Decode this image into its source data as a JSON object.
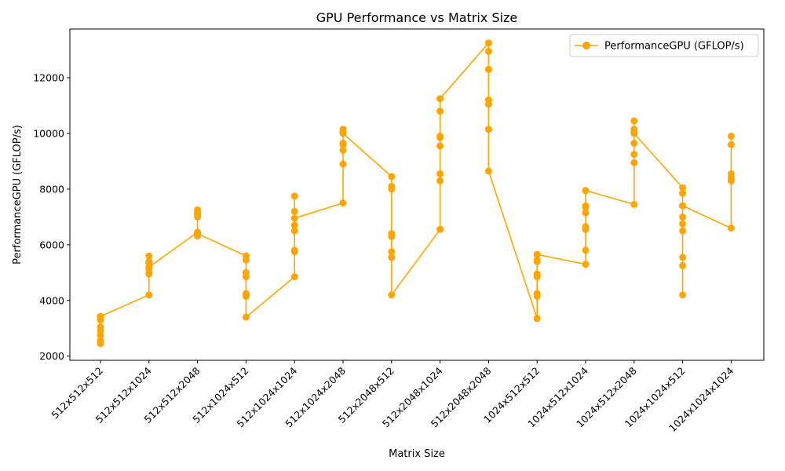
{
  "chart_data": {
    "type": "line",
    "title": "GPU Performance vs Matrix Size",
    "xlabel": "Matrix Size",
    "ylabel": "PerformanceGPU (GFLOP/s)",
    "ylim": [
      1850,
      13750
    ],
    "yticks": [
      2000,
      4000,
      6000,
      8000,
      10000,
      12000
    ],
    "ytick_labels": [
      "2000",
      "4000",
      "6000",
      "8000",
      "10000",
      "12000"
    ],
    "categories": [
      "512x512x512",
      "512x512x1024",
      "512x512x2048",
      "512x1024x512",
      "512x1024x1024",
      "512x1024x2048",
      "512x2048x512",
      "512x2048x1024",
      "512x2048x2048",
      "1024x512x512",
      "1024x512x1024",
      "1024x512x2048",
      "1024x1024x512",
      "1024x1024x1024"
    ],
    "legend": {
      "position": "top-right"
    },
    "color": "#ffa500",
    "series": [
      {
        "name": "PerformanceGPU (GFLOP/s)",
        "points": [
          {
            "x": "512x512x512",
            "y": 2450
          },
          {
            "x": "512x512x512",
            "y": 2550
          },
          {
            "x": "512x512x512",
            "y": 2750
          },
          {
            "x": "512x512x512",
            "y": 2900
          },
          {
            "x": "512x512x512",
            "y": 3050
          },
          {
            "x": "512x512x512",
            "y": 3300
          },
          {
            "x": "512x512x512",
            "y": 3400
          },
          {
            "x": "512x512x512",
            "y": 3430
          },
          {
            "x": "512x512x1024",
            "y": 4200
          },
          {
            "x": "512x512x1024",
            "y": 4950
          },
          {
            "x": "512x512x1024",
            "y": 5000
          },
          {
            "x": "512x512x1024",
            "y": 5150
          },
          {
            "x": "512x512x1024",
            "y": 5350
          },
          {
            "x": "512x512x1024",
            "y": 5400
          },
          {
            "x": "512x512x1024",
            "y": 5600
          },
          {
            "x": "512x512x1024",
            "y": 5200
          },
          {
            "x": "512x512x2048",
            "y": 6450
          },
          {
            "x": "512x512x2048",
            "y": 6320
          },
          {
            "x": "512x512x2048",
            "y": 6400
          },
          {
            "x": "512x512x2048",
            "y": 7000
          },
          {
            "x": "512x512x2048",
            "y": 7100
          },
          {
            "x": "512x512x2048",
            "y": 7150
          },
          {
            "x": "512x512x2048",
            "y": 7250
          },
          {
            "x": "512x512x2048",
            "y": 6400
          },
          {
            "x": "512x1024x512",
            "y": 5600
          },
          {
            "x": "512x1024x512",
            "y": 5450
          },
          {
            "x": "512x1024x512",
            "y": 5000
          },
          {
            "x": "512x1024x512",
            "y": 4850
          },
          {
            "x": "512x1024x512",
            "y": 4250
          },
          {
            "x": "512x1024x512",
            "y": 4150
          },
          {
            "x": "512x1024x512",
            "y": 4200
          },
          {
            "x": "512x1024x512",
            "y": 3400
          },
          {
            "x": "512x1024x1024",
            "y": 4850
          },
          {
            "x": "512x1024x1024",
            "y": 5750
          },
          {
            "x": "512x1024x1024",
            "y": 5800
          },
          {
            "x": "512x1024x1024",
            "y": 6500
          },
          {
            "x": "512x1024x1024",
            "y": 6700
          },
          {
            "x": "512x1024x1024",
            "y": 7200
          },
          {
            "x": "512x1024x1024",
            "y": 7750
          },
          {
            "x": "512x1024x1024",
            "y": 6950
          },
          {
            "x": "512x1024x2048",
            "y": 7500
          },
          {
            "x": "512x1024x2048",
            "y": 8900
          },
          {
            "x": "512x1024x2048",
            "y": 9400
          },
          {
            "x": "512x1024x2048",
            "y": 9600
          },
          {
            "x": "512x1024x2048",
            "y": 9650
          },
          {
            "x": "512x1024x2048",
            "y": 10150
          },
          {
            "x": "512x1024x2048",
            "y": 10050
          },
          {
            "x": "512x1024x2048",
            "y": 10000
          },
          {
            "x": "512x2048x512",
            "y": 8450
          },
          {
            "x": "512x2048x512",
            "y": 8100
          },
          {
            "x": "512x2048x512",
            "y": 8000
          },
          {
            "x": "512x2048x512",
            "y": 6400
          },
          {
            "x": "512x2048x512",
            "y": 6300
          },
          {
            "x": "512x2048x512",
            "y": 5750
          },
          {
            "x": "512x2048x512",
            "y": 5550
          },
          {
            "x": "512x2048x512",
            "y": 4200
          },
          {
            "x": "512x2048x1024",
            "y": 6550
          },
          {
            "x": "512x2048x1024",
            "y": 8300
          },
          {
            "x": "512x2048x1024",
            "y": 8550
          },
          {
            "x": "512x2048x1024",
            "y": 9550
          },
          {
            "x": "512x2048x1024",
            "y": 9850
          },
          {
            "x": "512x2048x1024",
            "y": 9900
          },
          {
            "x": "512x2048x1024",
            "y": 10800
          },
          {
            "x": "512x2048x1024",
            "y": 11250
          },
          {
            "x": "512x2048x2048",
            "y": 13250
          },
          {
            "x": "512x2048x2048",
            "y": 12950
          },
          {
            "x": "512x2048x2048",
            "y": 12300
          },
          {
            "x": "512x2048x2048",
            "y": 12300
          },
          {
            "x": "512x2048x2048",
            "y": 11200
          },
          {
            "x": "512x2048x2048",
            "y": 11050
          },
          {
            "x": "512x2048x2048",
            "y": 10150
          },
          {
            "x": "512x2048x2048",
            "y": 8650
          },
          {
            "x": "1024x512x512",
            "y": 3350
          },
          {
            "x": "1024x512x512",
            "y": 4150
          },
          {
            "x": "1024x512x512",
            "y": 4250
          },
          {
            "x": "1024x512x512",
            "y": 4850
          },
          {
            "x": "1024x512x512",
            "y": 4950
          },
          {
            "x": "1024x512x512",
            "y": 5400
          },
          {
            "x": "1024x512x512",
            "y": 5450
          },
          {
            "x": "1024x512x512",
            "y": 5650
          },
          {
            "x": "1024x512x1024",
            "y": 5300
          },
          {
            "x": "1024x512x1024",
            "y": 5800
          },
          {
            "x": "1024x512x1024",
            "y": 6550
          },
          {
            "x": "1024x512x1024",
            "y": 6650
          },
          {
            "x": "1024x512x1024",
            "y": 7150
          },
          {
            "x": "1024x512x1024",
            "y": 7350
          },
          {
            "x": "1024x512x1024",
            "y": 7400
          },
          {
            "x": "1024x512x1024",
            "y": 7950
          },
          {
            "x": "1024x512x2048",
            "y": 7450
          },
          {
            "x": "1024x512x2048",
            "y": 8950
          },
          {
            "x": "1024x512x2048",
            "y": 9250
          },
          {
            "x": "1024x512x2048",
            "y": 9650
          },
          {
            "x": "1024x512x2048",
            "y": 10050
          },
          {
            "x": "1024x512x2048",
            "y": 10150
          },
          {
            "x": "1024x512x2048",
            "y": 10450
          },
          {
            "x": "1024x512x2048",
            "y": 10000
          },
          {
            "x": "1024x1024x512",
            "y": 8050
          },
          {
            "x": "1024x1024x512",
            "y": 7850
          },
          {
            "x": "1024x1024x512",
            "y": 7400
          },
          {
            "x": "1024x1024x512",
            "y": 7000
          },
          {
            "x": "1024x1024x512",
            "y": 6750
          },
          {
            "x": "1024x1024x512",
            "y": 6500
          },
          {
            "x": "1024x1024x512",
            "y": 5550
          },
          {
            "x": "1024x1024x512",
            "y": 5250
          },
          {
            "x": "1024x1024x512",
            "y": 4200
          },
          {
            "x": "1024x1024x512",
            "y": 7400
          },
          {
            "x": "1024x1024x1024",
            "y": 6600
          },
          {
            "x": "1024x1024x1024",
            "y": 8300
          },
          {
            "x": "1024x1024x1024",
            "y": 8400
          },
          {
            "x": "1024x1024x1024",
            "y": 8550
          },
          {
            "x": "1024x1024x1024",
            "y": 9600
          },
          {
            "x": "1024x1024x1024",
            "y": 9900
          }
        ]
      }
    ]
  }
}
